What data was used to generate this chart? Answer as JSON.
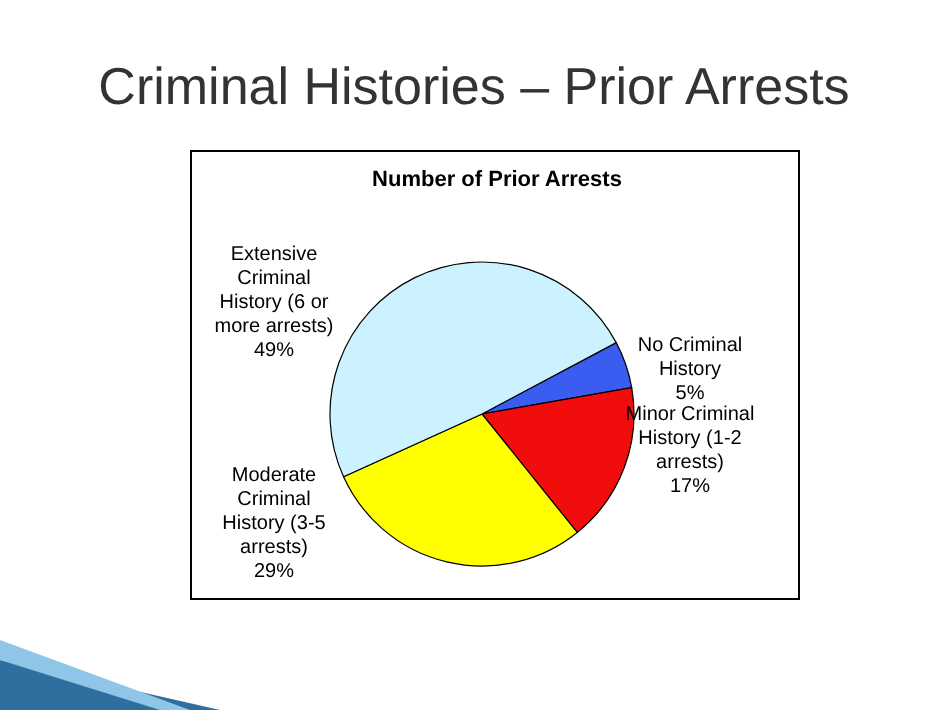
{
  "chart_data": {
    "type": "pie",
    "title": "Criminal Histories – Prior Arrests",
    "subtitle": "Number of Prior Arrests",
    "categories": [
      "No Criminal History",
      "Minor Criminal History (1-2 arrests)",
      "Moderate Criminal History (3-5 arrests)",
      "Extensive Criminal History (6 or more arrests)"
    ],
    "values": [
      5,
      17,
      29,
      49
    ],
    "value_labels": [
      "5%",
      "17%",
      "29%",
      "49%"
    ],
    "colors": [
      "#3a5cf0",
      "#f20d0d",
      "#ffff00",
      "#ccf2ff"
    ],
    "legend": false
  }
}
